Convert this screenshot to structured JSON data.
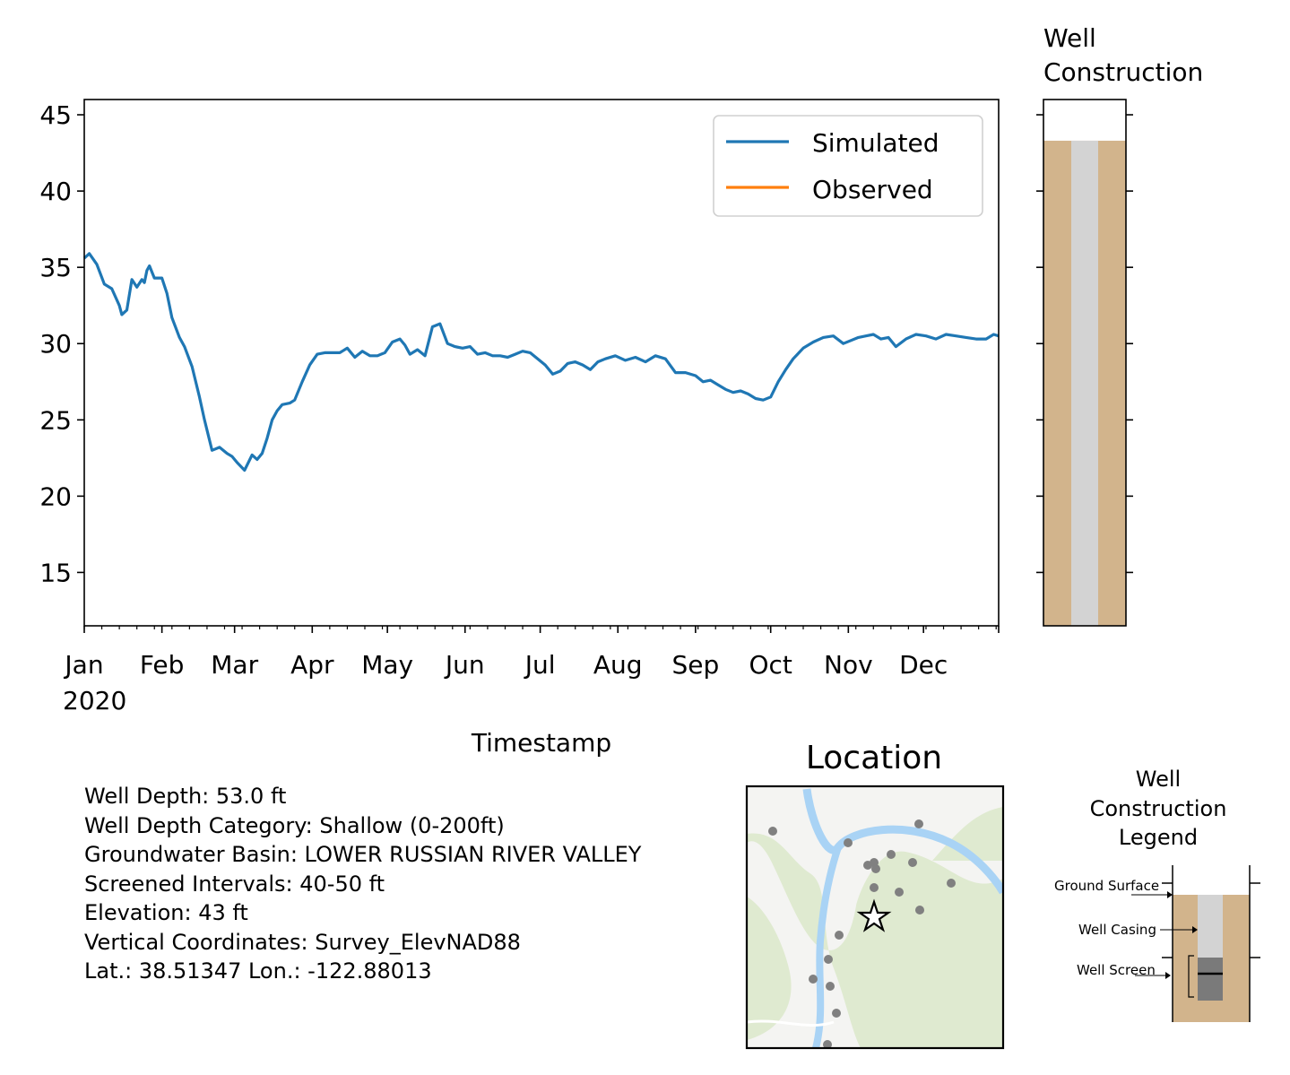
{
  "chart_data": [
    {
      "type": "line",
      "xlabel": "Timestamp",
      "ylabel": "",
      "x_tick_labels": [
        "Jan",
        "Feb",
        "Mar",
        "Apr",
        "May",
        "Jun",
        "Jul",
        "Aug",
        "Sep",
        "Oct",
        "Nov",
        "Dec"
      ],
      "x_year_label": "2020",
      "xlim": [
        "2020-01-01",
        "2020-12-31"
      ],
      "ylim": [
        11.5,
        46
      ],
      "y_ticks": [
        15,
        20,
        25,
        30,
        35,
        40,
        45
      ],
      "legend_position": "upper right",
      "grid": false,
      "series": [
        {
          "name": "Simulated",
          "color": "#1f77b4",
          "x": [
            "2020-01-01",
            "2020-01-03",
            "2020-01-06",
            "2020-01-09",
            "2020-01-12",
            "2020-01-15",
            "2020-01-16",
            "2020-01-18",
            "2020-01-20",
            "2020-01-22",
            "2020-01-24",
            "2020-01-25",
            "2020-01-26",
            "2020-01-27",
            "2020-01-29",
            "2020-02-01",
            "2020-02-03",
            "2020-02-05",
            "2020-02-08",
            "2020-02-10",
            "2020-02-13",
            "2020-02-16",
            "2020-02-18",
            "2020-02-21",
            "2020-02-24",
            "2020-02-27",
            "2020-02-29",
            "2020-03-02",
            "2020-03-05",
            "2020-03-08",
            "2020-03-10",
            "2020-03-12",
            "2020-03-14",
            "2020-03-16",
            "2020-03-18",
            "2020-03-20",
            "2020-03-23",
            "2020-03-25",
            "2020-03-28",
            "2020-03-31",
            "2020-04-03",
            "2020-04-06",
            "2020-04-09",
            "2020-04-12",
            "2020-04-15",
            "2020-04-18",
            "2020-04-21",
            "2020-04-24",
            "2020-04-27",
            "2020-04-30",
            "2020-05-03",
            "2020-05-06",
            "2020-05-08",
            "2020-05-10",
            "2020-05-13",
            "2020-05-16",
            "2020-05-19",
            "2020-05-22",
            "2020-05-25",
            "2020-05-28",
            "2020-05-31",
            "2020-06-03",
            "2020-06-06",
            "2020-06-09",
            "2020-06-12",
            "2020-06-15",
            "2020-06-18",
            "2020-06-21",
            "2020-06-24",
            "2020-06-27",
            "2020-06-30",
            "2020-07-03",
            "2020-07-06",
            "2020-07-09",
            "2020-07-12",
            "2020-07-15",
            "2020-07-18",
            "2020-07-21",
            "2020-07-24",
            "2020-07-27",
            "2020-07-31",
            "2020-08-04",
            "2020-08-08",
            "2020-08-12",
            "2020-08-16",
            "2020-08-20",
            "2020-08-24",
            "2020-08-28",
            "2020-09-01",
            "2020-09-04",
            "2020-09-07",
            "2020-09-10",
            "2020-09-13",
            "2020-09-16",
            "2020-09-19",
            "2020-09-22",
            "2020-09-25",
            "2020-09-28",
            "2020-10-01",
            "2020-10-04",
            "2020-10-07",
            "2020-10-10",
            "2020-10-14",
            "2020-10-18",
            "2020-10-22",
            "2020-10-26",
            "2020-10-30",
            "2020-11-02",
            "2020-11-05",
            "2020-11-08",
            "2020-11-11",
            "2020-11-14",
            "2020-11-17",
            "2020-11-20",
            "2020-11-24",
            "2020-11-28",
            "2020-12-02",
            "2020-12-06",
            "2020-12-10",
            "2020-12-14",
            "2020-12-18",
            "2020-12-22",
            "2020-12-26",
            "2020-12-29",
            "2020-12-31"
          ],
          "y": [
            35.6,
            35.9,
            35.2,
            33.9,
            33.6,
            32.5,
            31.9,
            32.2,
            34.2,
            33.7,
            34.2,
            34.0,
            34.8,
            35.1,
            34.3,
            34.3,
            33.3,
            31.7,
            30.4,
            29.8,
            28.5,
            26.5,
            25.0,
            23.0,
            23.2,
            22.8,
            22.6,
            22.2,
            21.7,
            22.7,
            22.4,
            22.8,
            23.8,
            25.0,
            25.6,
            26.0,
            26.1,
            26.3,
            27.5,
            28.6,
            29.3,
            29.4,
            29.4,
            29.4,
            29.7,
            29.1,
            29.5,
            29.2,
            29.2,
            29.4,
            30.1,
            30.3,
            29.9,
            29.3,
            29.6,
            29.2,
            31.1,
            31.3,
            30.0,
            29.8,
            29.7,
            29.8,
            29.3,
            29.4,
            29.2,
            29.2,
            29.1,
            29.3,
            29.5,
            29.4,
            29.0,
            28.6,
            28.0,
            28.2,
            28.7,
            28.8,
            28.6,
            28.3,
            28.8,
            29.0,
            29.2,
            28.9,
            29.1,
            28.8,
            29.2,
            29.0,
            28.1,
            28.1,
            27.9,
            27.5,
            27.6,
            27.3,
            27.0,
            26.8,
            26.9,
            26.7,
            26.4,
            26.3,
            26.5,
            27.5,
            28.3,
            29.0,
            29.7,
            30.1,
            30.4,
            30.5,
            30.0,
            30.2,
            30.4,
            30.5,
            30.6,
            30.3,
            30.4,
            29.8,
            30.3,
            30.6,
            30.5,
            30.3,
            30.6,
            30.5,
            30.4,
            30.3,
            30.3,
            30.6,
            30.5
          ],
          "note_x_spacing": "approximate"
        },
        {
          "name": "Observed",
          "color": "#ff7f0e",
          "x": [],
          "y": []
        }
      ]
    },
    {
      "type": "bar",
      "title": "Well\nConstruction",
      "ylim": [
        11.5,
        46
      ],
      "y_ticks": [
        15,
        20,
        25,
        30,
        35,
        40,
        45
      ],
      "ground_surface": 43.3,
      "bottom": 11.5,
      "soil_color": "#d2b48c",
      "casing_color": "#d3d3d3"
    }
  ],
  "info": {
    "lines": [
      "Well Depth: 53.0 ft",
      "Well Depth Category: Shallow (0-200ft)",
      "Groundwater Basin: LOWER RUSSIAN RIVER VALLEY",
      "Screened Intervals: 40-50 ft",
      "Elevation: 43 ft",
      "Vertical Coordinates: Survey_ElevNAD88",
      "Lat.: 38.51347 Lon.: -122.88013"
    ]
  },
  "map": {
    "title": "Location",
    "river_color": "#a9d3f5",
    "land_color": "#dfead0",
    "well_marker_color": "#808080"
  },
  "legend_panel": {
    "title": "Well\nConstruction\nLegend",
    "ground_surface_label": "Ground Surface",
    "casing_label": "Well Casing",
    "screen_label": "Well Screen"
  }
}
